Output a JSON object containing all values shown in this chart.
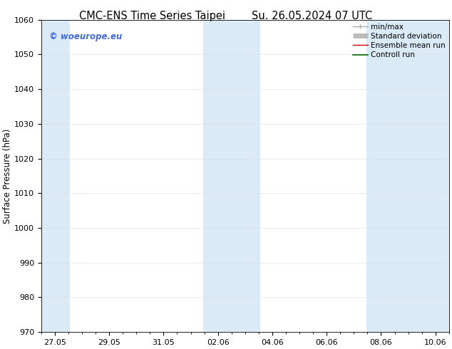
{
  "title_left": "CMC-ENS Time Series Taipei",
  "title_right": "Su. 26.05.2024 07 UTC",
  "ylabel": "Surface Pressure (hPa)",
  "ylim": [
    970,
    1060
  ],
  "yticks": [
    970,
    980,
    990,
    1000,
    1010,
    1020,
    1030,
    1040,
    1050,
    1060
  ],
  "xtick_labels": [
    "27.05",
    "29.05",
    "31.05",
    "02.06",
    "04.06",
    "06.06",
    "08.06",
    "10.06"
  ],
  "xtick_positions": [
    0,
    2,
    4,
    6,
    8,
    10,
    12,
    14
  ],
  "xlim": [
    -0.5,
    14.5
  ],
  "shade_color": "#daeaf6",
  "shade_ranges": [
    [
      -0.5,
      0.55
    ],
    [
      5.45,
      7.55
    ],
    [
      11.45,
      14.5
    ]
  ],
  "watermark_text": "© woeurope.eu",
  "watermark_color": "#4169e1",
  "legend_entries": [
    {
      "label": "min/max",
      "color": "#aaaaaa",
      "lw": 1.0,
      "type": "minmax"
    },
    {
      "label": "Standard deviation",
      "color": "#bbbbbb",
      "lw": 5,
      "type": "bar"
    },
    {
      "label": "Ensemble mean run",
      "color": "#cc0000",
      "lw": 1.0,
      "type": "line"
    },
    {
      "label": "Controll run",
      "color": "#006600",
      "lw": 1.2,
      "type": "line"
    }
  ],
  "bg_color": "#ffffff",
  "title_fontsize": 10.5,
  "tick_fontsize": 8,
  "ylabel_fontsize": 8.5,
  "watermark_fontsize": 8.5,
  "legend_fontsize": 7.5
}
